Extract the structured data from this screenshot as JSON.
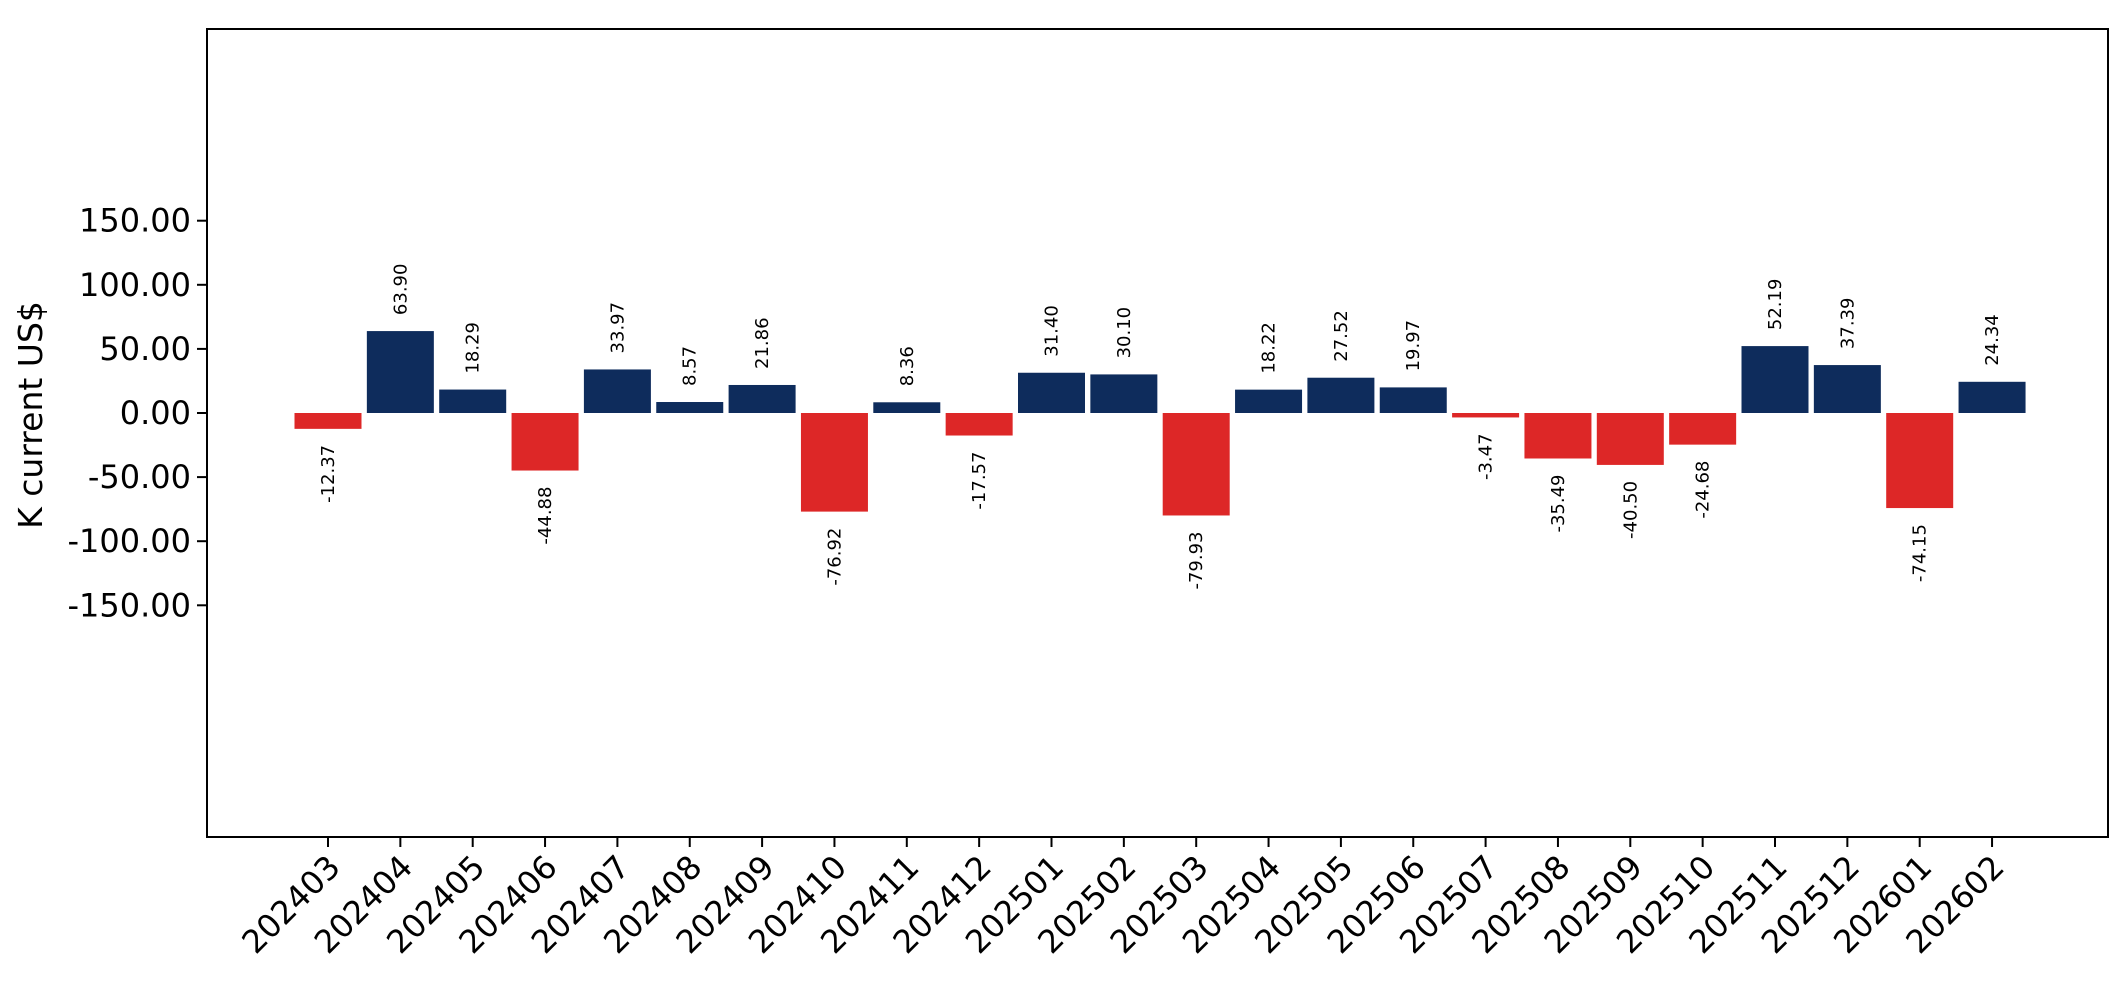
{
  "chart_data": {
    "type": "bar",
    "title": "",
    "xlabel": "",
    "ylabel": "K current US$",
    "ylim": [
      -165,
      150
    ],
    "yticks": [
      -150,
      -100,
      -50,
      0,
      50,
      100,
      150
    ],
    "ytick_labels": [
      "-150.00",
      "-100.00",
      "-50.00",
      "0.00",
      "50.00",
      "100.00",
      "150.00"
    ],
    "categories": [
      "202403",
      "202404",
      "202405",
      "202406",
      "202407",
      "202408",
      "202409",
      "202410",
      "202411",
      "202412",
      "202501",
      "202502",
      "202503",
      "202504",
      "202505",
      "202506",
      "202507",
      "202508",
      "202509",
      "202510",
      "202511",
      "202512",
      "202601",
      "202602"
    ],
    "values": [
      -12.37,
      63.9,
      18.29,
      -44.88,
      33.97,
      8.57,
      21.86,
      -76.92,
      8.36,
      -17.57,
      31.4,
      30.1,
      -79.93,
      18.22,
      27.52,
      19.97,
      -3.47,
      -35.49,
      -40.5,
      -24.68,
      52.19,
      37.39,
      -74.15,
      24.34
    ],
    "value_labels": [
      "-12.37",
      "63.90",
      "18.29",
      "-44.88",
      "33.97",
      "8.57",
      "21.86",
      "-76.92",
      "8.36",
      "-17.57",
      "31.40",
      "30.10",
      "-79.93",
      "18.22",
      "27.52",
      "19.97",
      "-3.47",
      "-35.49",
      "-40.50",
      "-24.68",
      "52.19",
      "37.39",
      "-74.15",
      "24.34"
    ],
    "grid": false,
    "colors": {
      "positive": "#0e2c5c",
      "negative": "#dd2727",
      "axis": "#000000"
    }
  }
}
